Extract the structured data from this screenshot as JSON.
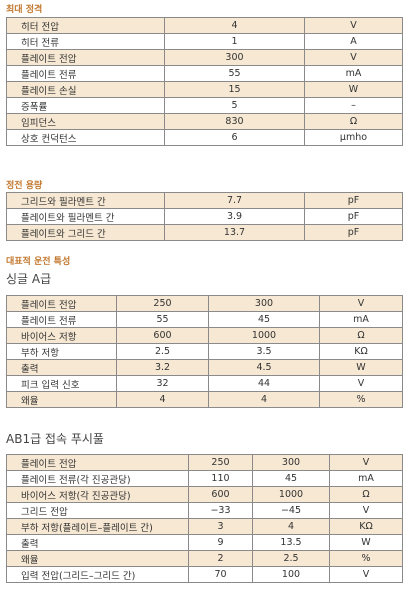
{
  "max_ratings": {
    "title": "최대 정격",
    "rows": [
      [
        "히터 전압",
        "4",
        "V"
      ],
      [
        "히터 전류",
        "1",
        "A"
      ],
      [
        "플레이트 전압",
        "300",
        "V"
      ],
      [
        "플레이트 전류",
        "55",
        "mA"
      ],
      [
        "플레이트 손실",
        "15",
        "W"
      ],
      [
        "증폭률",
        "5",
        "–"
      ],
      [
        "임피던스",
        "830",
        "Ω"
      ],
      [
        "상호 컨덕턴스",
        "6",
        "μmho"
      ]
    ]
  },
  "capacitance": {
    "title": "정전 용량",
    "rows": [
      [
        "그리드와 필라멘트 간",
        "7.7",
        "pF"
      ],
      [
        "플레이트와 필라멘트 간",
        "3.9",
        "pF"
      ],
      [
        "플레이트와 그리드 간",
        "13.7",
        "pF"
      ]
    ]
  },
  "typical_operation": {
    "title": "대표적 운전 특성",
    "class_a": {
      "title": "싱글 A급",
      "rows": [
        [
          "플레이트 전압",
          "250",
          "300",
          "V"
        ],
        [
          "플레이트 전류",
          "55",
          "45",
          "mA"
        ],
        [
          "바이어스 저항",
          "600",
          "1000",
          "Ω"
        ],
        [
          "부하 저항",
          "2.5",
          "3.5",
          "KΩ"
        ],
        [
          "출력",
          "3.2",
          "4.5",
          "W"
        ],
        [
          "피크 입력 신호",
          "32",
          "44",
          "V"
        ],
        [
          "왜율",
          "4",
          "4",
          "%"
        ]
      ]
    },
    "class_ab1": {
      "title": "AB1급 접속 푸시풀",
      "rows": [
        [
          "플레이트 전압",
          "250",
          "300",
          "V"
        ],
        [
          "플레이트 전류(각 진공관당)",
          "110",
          "45",
          "mA"
        ],
        [
          "바이어스 저항(각 진공관당)",
          "600",
          "1000",
          "Ω"
        ],
        [
          "그리드 전압",
          "−33",
          "−45",
          "V"
        ],
        [
          "부하 저항(플레이트–플레이트 간)",
          "3",
          "4",
          "KΩ"
        ],
        [
          "출력",
          "9",
          "13.5",
          "W"
        ],
        [
          "왜율",
          "2",
          "2.5",
          "%"
        ],
        [
          "입력 전압(그리드–그리드 간)",
          "70",
          "100",
          "V"
        ]
      ]
    }
  }
}
